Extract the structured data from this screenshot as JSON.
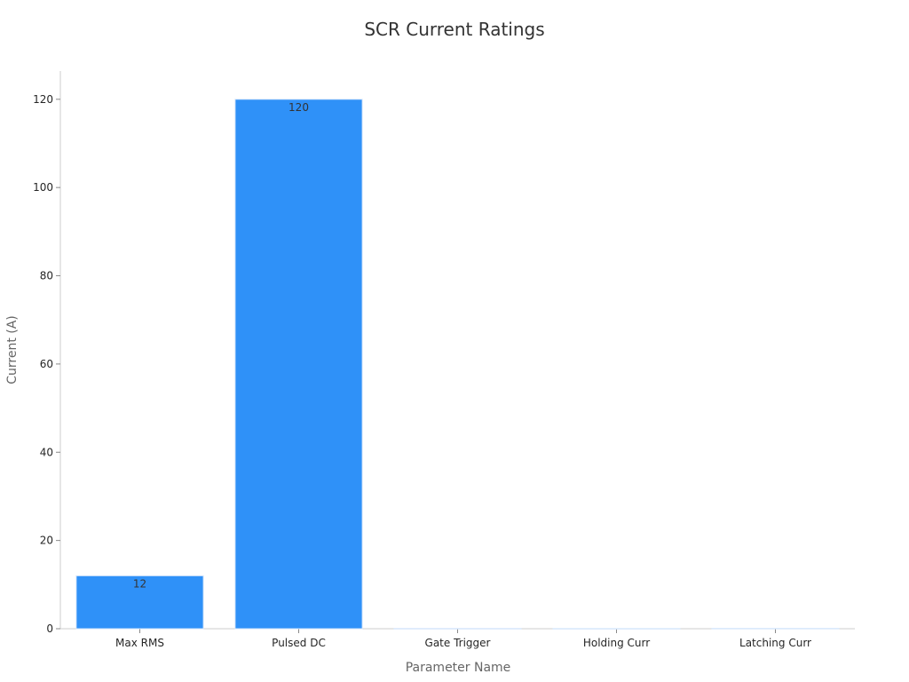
{
  "chart_data": {
    "type": "bar",
    "title": "SCR Current Ratings",
    "xlabel": "Parameter Name",
    "ylabel": "Current (A)",
    "categories": [
      "Max RMS",
      "Pulsed DC",
      "Gate Trigger",
      "Holding Curr",
      "Latching Curr"
    ],
    "values": [
      12,
      120,
      0.05,
      0.04,
      0.07
    ],
    "data_labels": [
      "12",
      "120",
      "",
      "",
      ""
    ],
    "ylim": [
      0,
      126.4
    ],
    "yticks": [
      0,
      20,
      40,
      60,
      80,
      100,
      120
    ],
    "grid": false,
    "legend": "none",
    "colors": {
      "bar": "#2f91f8",
      "bar_edge": "#d6e6fb"
    }
  }
}
